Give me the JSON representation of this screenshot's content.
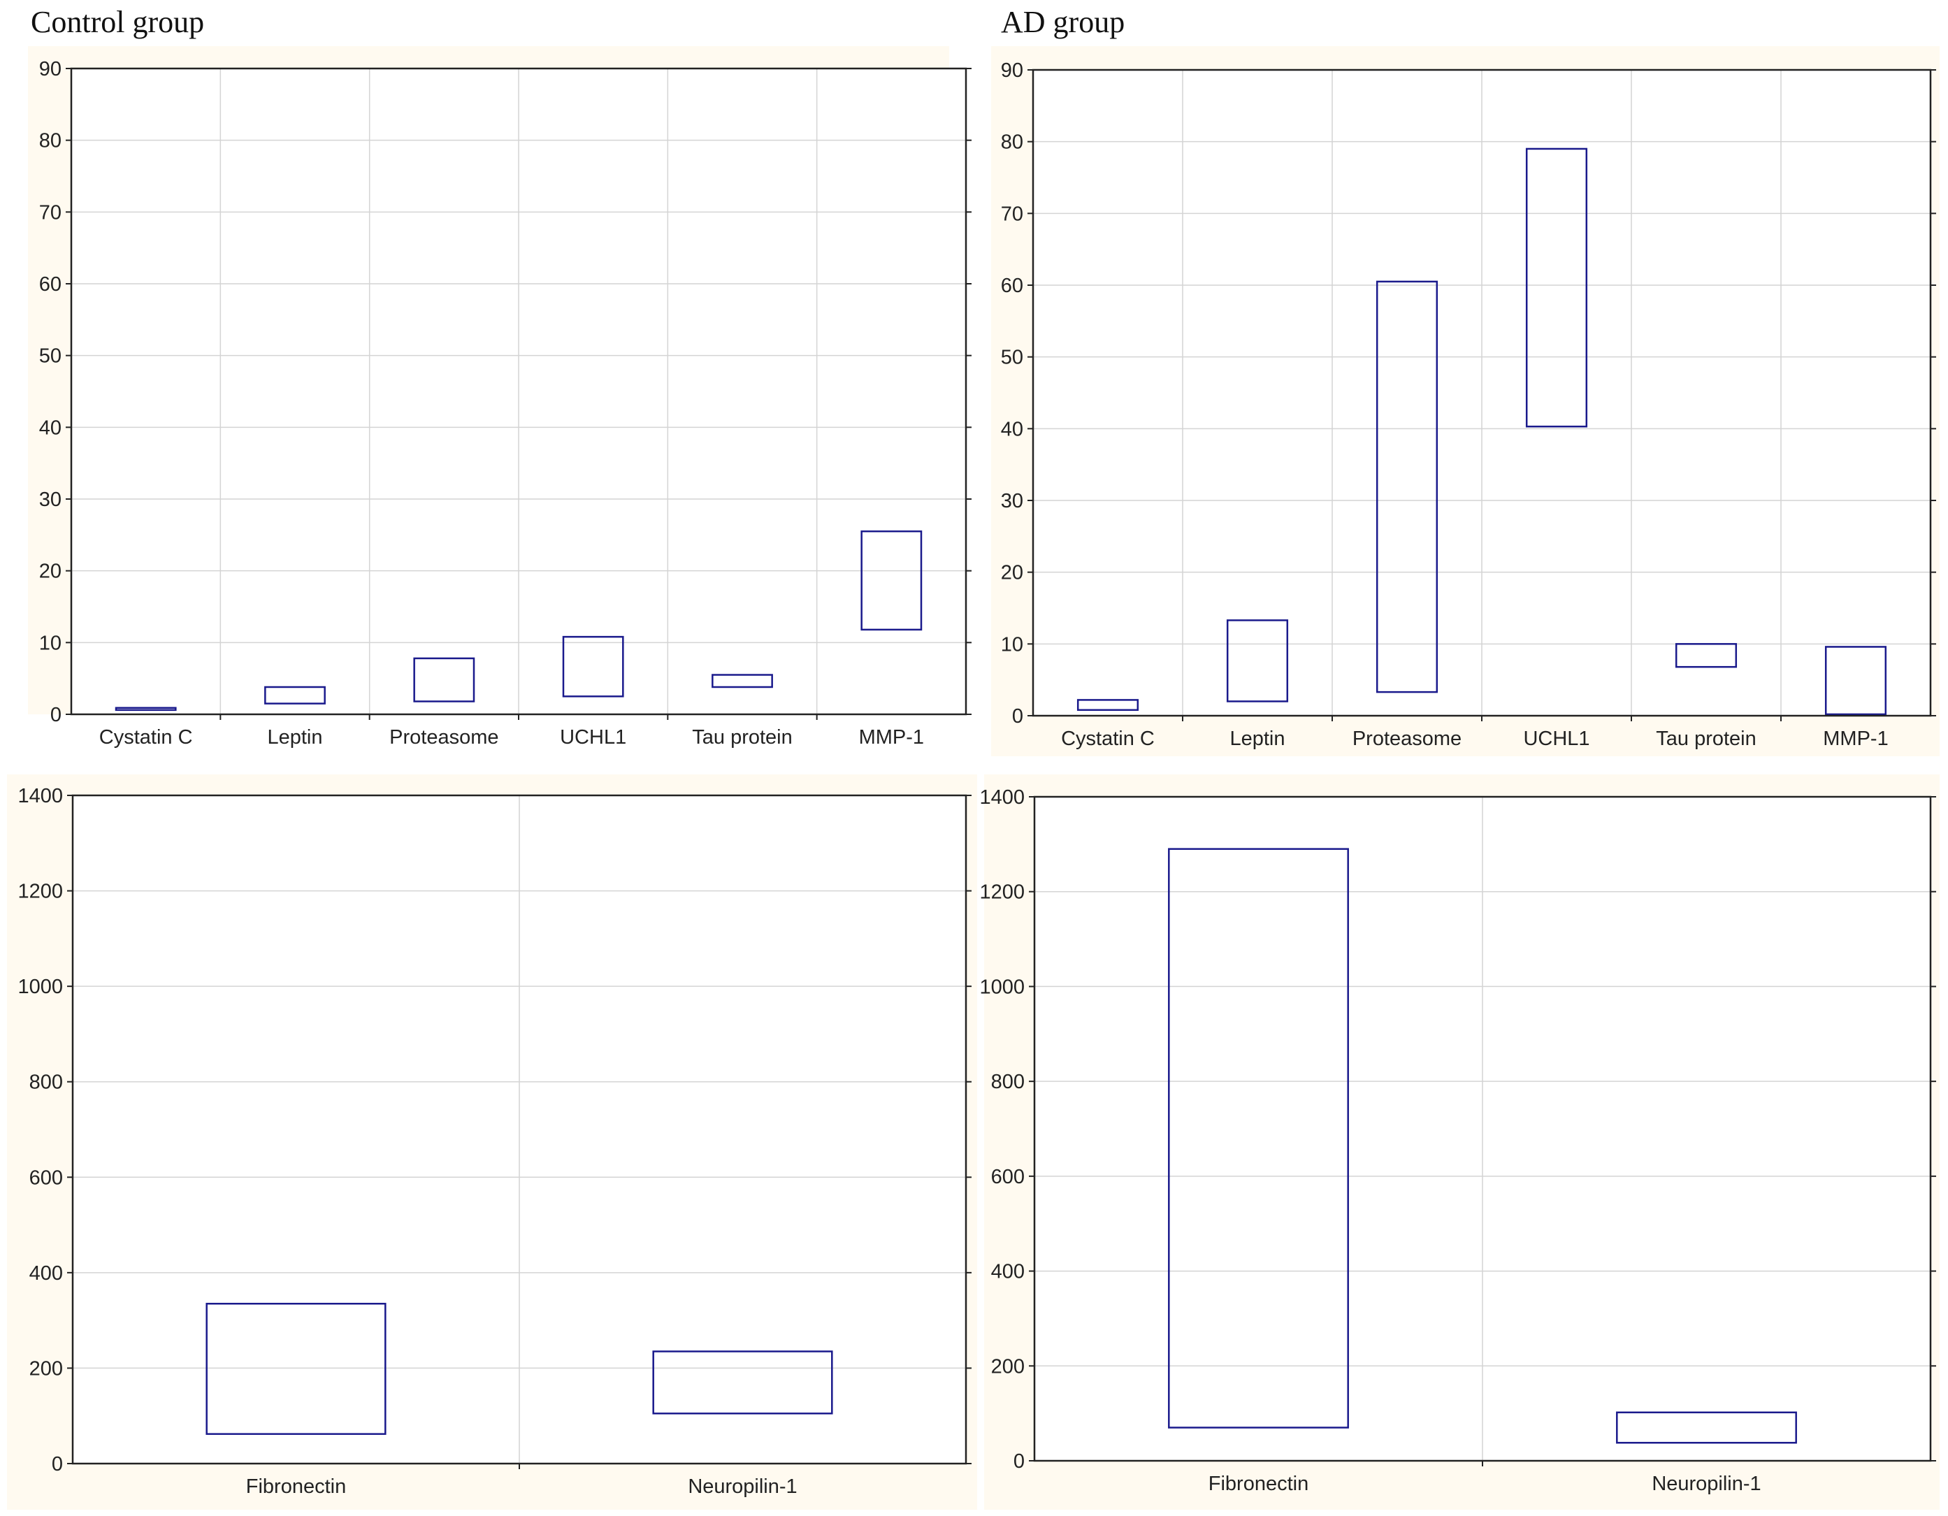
{
  "titles": {
    "control": "Control group",
    "ad": "AD group"
  },
  "colors": {
    "panel_bg": "#fffaf0",
    "plot_bg": "#ffffff",
    "grid": "#d4d4d4",
    "axis": "#222222",
    "box": "#1a1a8c"
  },
  "chart_data": [
    {
      "id": "control-top",
      "type": "box",
      "title": "Control group",
      "categories": [
        "Cystatin C",
        "Leptin",
        "Proteasome",
        "UCHL1",
        "Tau protein",
        "MMP-1"
      ],
      "low": [
        0.6,
        1.5,
        1.8,
        2.5,
        3.8,
        11.8
      ],
      "high": [
        0.9,
        3.8,
        7.8,
        10.8,
        5.5,
        25.5
      ],
      "ylim": [
        0,
        90
      ],
      "yticks": [
        0,
        10,
        20,
        30,
        40,
        50,
        60,
        70,
        80,
        90
      ],
      "grid": true
    },
    {
      "id": "ad-top",
      "type": "box",
      "title": "AD group",
      "categories": [
        "Cystatin C",
        "Leptin",
        "Proteasome",
        "UCHL1",
        "Tau protein",
        "MMP-1"
      ],
      "low": [
        0.8,
        2.0,
        3.3,
        40.3,
        6.8,
        0.2
      ],
      "high": [
        2.2,
        13.3,
        60.5,
        79.0,
        10.0,
        9.6
      ],
      "ylim": [
        0,
        90
      ],
      "yticks": [
        0,
        10,
        20,
        30,
        40,
        50,
        60,
        70,
        80,
        90
      ],
      "grid": true
    },
    {
      "id": "control-bottom",
      "type": "box",
      "title": "",
      "categories": [
        "Fibronectin",
        "Neuropilin-1"
      ],
      "low": [
        62,
        105
      ],
      "high": [
        335,
        235
      ],
      "ylim": [
        0,
        1400
      ],
      "yticks": [
        0,
        200,
        400,
        600,
        800,
        1000,
        1200,
        1400
      ],
      "grid": true
    },
    {
      "id": "ad-bottom",
      "type": "box",
      "title": "",
      "categories": [
        "Fibronectin",
        "Neuropilin-1"
      ],
      "low": [
        70,
        38
      ],
      "high": [
        1290,
        102
      ],
      "ylim": [
        0,
        1400
      ],
      "yticks": [
        0,
        200,
        400,
        600,
        800,
        1000,
        1200,
        1400
      ],
      "grid": true
    }
  ]
}
